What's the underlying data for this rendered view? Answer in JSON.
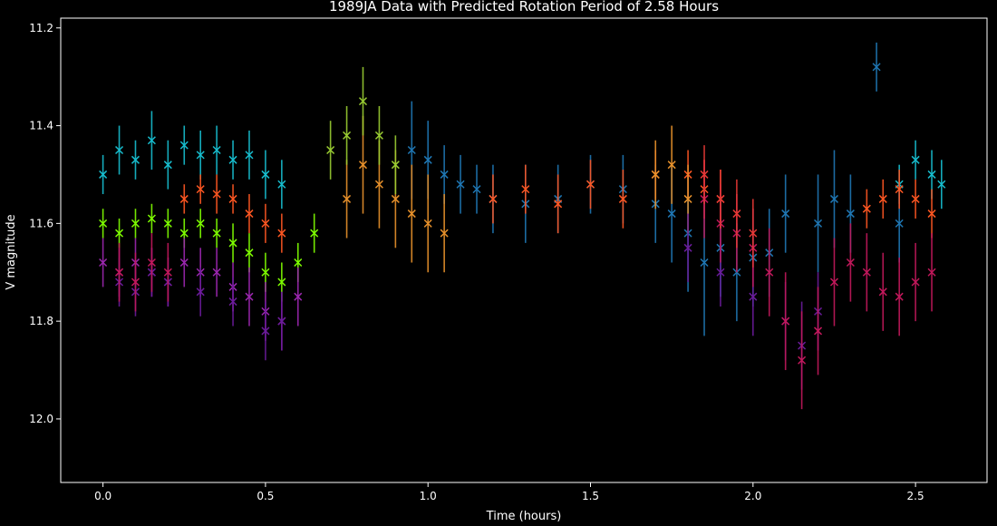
{
  "chart_data": {
    "type": "scatter",
    "title": "1989JA Data with Predicted Rotation Period of 2.58 Hours",
    "xlabel": "Time (hours)",
    "ylabel": "V magnitude",
    "xlim": [
      -0.13,
      2.72
    ],
    "ylim": [
      12.13,
      11.18
    ],
    "y_inverted": true,
    "x_ticks": [
      0.0,
      0.5,
      1.0,
      1.5,
      2.0,
      2.5
    ],
    "x_tick_labels": [
      "0.0",
      "0.5",
      "1.0",
      "1.5",
      "2.0",
      "2.5"
    ],
    "y_ticks": [
      11.2,
      11.4,
      11.6,
      11.8,
      12.0
    ],
    "y_tick_labels": [
      "11.2",
      "11.4",
      "11.6",
      "11.8",
      "12.0"
    ],
    "marker": "x",
    "error_bars": true,
    "background": "#000000",
    "grid": false,
    "legend": "none",
    "series": [
      {
        "color": "#17becf",
        "x": [
          0.0,
          0.05,
          0.1,
          0.15,
          0.2,
          0.25,
          0.3,
          0.35,
          0.4,
          0.45,
          0.5,
          0.55,
          2.45,
          2.5,
          2.55,
          2.58
        ],
        "y": [
          11.5,
          11.45,
          11.47,
          11.43,
          11.48,
          11.44,
          11.46,
          11.45,
          11.47,
          11.46,
          11.5,
          11.52,
          11.52,
          11.47,
          11.5,
          11.52
        ],
        "err": [
          0.04,
          0.05,
          0.04,
          0.06,
          0.05,
          0.04,
          0.05,
          0.05,
          0.04,
          0.05,
          0.05,
          0.05,
          0.04,
          0.04,
          0.05,
          0.05
        ]
      },
      {
        "color": "#1f77b4",
        "x": [
          0.95,
          1.0,
          1.05,
          1.1,
          1.15,
          1.2,
          1.3,
          1.4,
          1.5,
          1.6,
          1.7,
          1.75,
          1.8,
          1.85,
          1.9,
          1.95,
          2.0,
          2.05,
          2.1,
          2.2,
          2.25,
          2.3,
          2.38,
          2.45
        ],
        "y": [
          11.45,
          11.47,
          11.5,
          11.52,
          11.53,
          11.55,
          11.56,
          11.55,
          11.52,
          11.53,
          11.56,
          11.58,
          11.62,
          11.68,
          11.65,
          11.7,
          11.67,
          11.66,
          11.58,
          11.6,
          11.55,
          11.58,
          11.28,
          11.6
        ],
        "err": [
          0.1,
          0.08,
          0.06,
          0.06,
          0.05,
          0.07,
          0.08,
          0.07,
          0.06,
          0.07,
          0.08,
          0.1,
          0.12,
          0.15,
          0.1,
          0.1,
          0.1,
          0.09,
          0.08,
          0.1,
          0.1,
          0.08,
          0.05,
          0.08
        ]
      },
      {
        "color": "#ff5722",
        "x": [
          0.25,
          0.3,
          0.35,
          0.4,
          0.45,
          0.5,
          0.55,
          1.2,
          1.3,
          1.4,
          1.5,
          1.6,
          1.7,
          1.8,
          1.85,
          1.9,
          2.35,
          2.4,
          2.45,
          2.5,
          2.55
        ],
        "y": [
          11.55,
          11.53,
          11.54,
          11.55,
          11.58,
          11.6,
          11.62,
          11.55,
          11.53,
          11.56,
          11.52,
          11.55,
          11.5,
          11.5,
          11.53,
          11.55,
          11.57,
          11.55,
          11.53,
          11.55,
          11.58
        ],
        "err": [
          0.03,
          0.03,
          0.04,
          0.03,
          0.04,
          0.04,
          0.04,
          0.05,
          0.05,
          0.06,
          0.05,
          0.06,
          0.05,
          0.05,
          0.06,
          0.06,
          0.04,
          0.04,
          0.04,
          0.04,
          0.05
        ]
      },
      {
        "color": "#e8912b",
        "x": [
          0.75,
          0.8,
          0.85,
          0.9,
          0.95,
          1.0,
          1.05,
          1.7,
          1.75,
          1.8
        ],
        "y": [
          11.55,
          11.48,
          11.52,
          11.55,
          11.58,
          11.6,
          11.62,
          11.5,
          11.48,
          11.55
        ],
        "err": [
          0.08,
          0.1,
          0.09,
          0.1,
          0.1,
          0.1,
          0.08,
          0.07,
          0.08,
          0.07
        ]
      },
      {
        "color": "#9acd32",
        "x": [
          0.7,
          0.75,
          0.8,
          0.85,
          0.9
        ],
        "y": [
          11.45,
          11.42,
          11.35,
          11.42,
          11.48
        ],
        "err": [
          0.06,
          0.06,
          0.07,
          0.06,
          0.06
        ]
      },
      {
        "color": "#7fff00",
        "x": [
          0.0,
          0.05,
          0.1,
          0.15,
          0.2,
          0.25,
          0.3,
          0.35,
          0.4,
          0.45,
          0.5,
          0.55,
          0.6,
          0.65
        ],
        "y": [
          11.6,
          11.62,
          11.6,
          11.59,
          11.6,
          11.62,
          11.6,
          11.62,
          11.64,
          11.66,
          11.7,
          11.72,
          11.68,
          11.62
        ],
        "err": [
          0.03,
          0.03,
          0.03,
          0.03,
          0.03,
          0.03,
          0.03,
          0.03,
          0.04,
          0.04,
          0.04,
          0.04,
          0.04,
          0.04
        ]
      },
      {
        "color": "#9c27b0",
        "x": [
          0.0,
          0.05,
          0.1,
          0.15,
          0.2,
          0.25,
          0.3,
          0.35,
          0.4,
          0.45,
          0.5,
          0.55,
          0.6
        ],
        "y": [
          11.68,
          11.7,
          11.68,
          11.7,
          11.72,
          11.68,
          11.7,
          11.7,
          11.73,
          11.75,
          11.78,
          11.8,
          11.75
        ],
        "err": [
          0.05,
          0.05,
          0.05,
          0.05,
          0.05,
          0.05,
          0.05,
          0.05,
          0.05,
          0.06,
          0.06,
          0.06,
          0.06
        ]
      },
      {
        "color": "#6a1b9a",
        "x": [
          0.05,
          0.1,
          0.15,
          0.2,
          0.3,
          0.4,
          0.5,
          0.55,
          1.8,
          1.9,
          2.0,
          2.1,
          2.15,
          2.2
        ],
        "y": [
          11.72,
          11.74,
          11.7,
          11.72,
          11.74,
          11.76,
          11.82,
          11.8,
          11.65,
          11.7,
          11.75,
          11.8,
          11.85,
          11.78
        ],
        "err": [
          0.05,
          0.05,
          0.05,
          0.05,
          0.05,
          0.05,
          0.06,
          0.06,
          0.07,
          0.07,
          0.08,
          0.08,
          0.09,
          0.08
        ]
      },
      {
        "color": "#c2185b",
        "x": [
          0.05,
          0.1,
          0.15,
          0.2,
          1.85,
          1.9,
          1.95,
          2.0,
          2.05,
          2.1,
          2.15,
          2.2,
          2.25,
          2.3,
          2.35,
          2.4,
          2.45,
          2.5,
          2.55
        ],
        "y": [
          11.7,
          11.72,
          11.68,
          11.7,
          11.55,
          11.6,
          11.62,
          11.65,
          11.7,
          11.8,
          11.88,
          11.82,
          11.72,
          11.68,
          11.7,
          11.74,
          11.75,
          11.72,
          11.7
        ],
        "err": [
          0.06,
          0.06,
          0.06,
          0.06,
          0.08,
          0.08,
          0.08,
          0.08,
          0.09,
          0.1,
          0.1,
          0.09,
          0.09,
          0.08,
          0.08,
          0.08,
          0.08,
          0.08,
          0.08
        ]
      },
      {
        "color": "#e53935",
        "x": [
          1.85,
          1.9,
          1.95,
          2.0
        ],
        "y": [
          11.5,
          11.55,
          11.58,
          11.62
        ],
        "err": [
          0.06,
          0.06,
          0.07,
          0.07
        ]
      }
    ]
  }
}
